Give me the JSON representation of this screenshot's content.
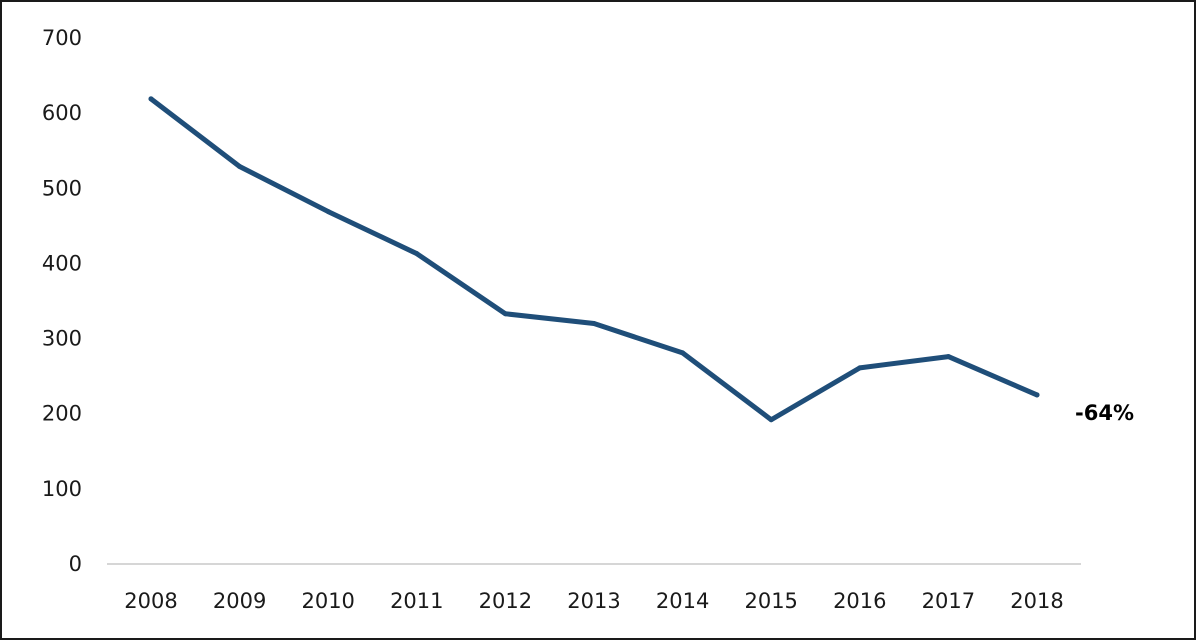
{
  "chart_data": {
    "type": "line",
    "title": "",
    "xlabel": "",
    "ylabel": "",
    "categories": [
      "2008",
      "2009",
      "2010",
      "2011",
      "2012",
      "2013",
      "2014",
      "2015",
      "2016",
      "2017",
      "2018"
    ],
    "series": [
      {
        "values": [
          619,
          529,
          469,
          413,
          333,
          320,
          281,
          192,
          261,
          276,
          225
        ],
        "color": "#1f4e79"
      }
    ],
    "ylim": [
      0,
      700
    ],
    "yticks": [
      "0",
      "100",
      "200",
      "300",
      "400",
      "500",
      "600",
      "700"
    ],
    "grid": false,
    "legend": "none",
    "annotation": "-64%"
  }
}
